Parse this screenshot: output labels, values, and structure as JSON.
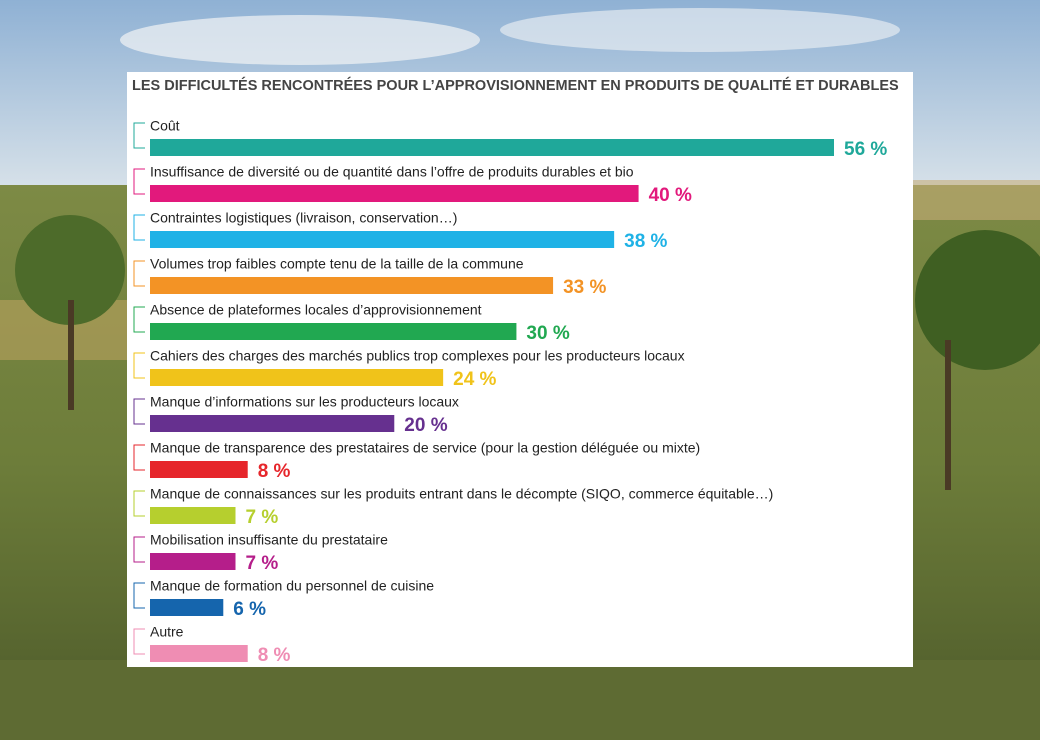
{
  "chart_data": {
    "type": "bar",
    "orientation": "horizontal",
    "title": "LES DIFFICULTÉS RENCONTRÉES POUR L’APPROVISIONNEMENT EN PRODUITS DE QUALITÉ ET DURABLES",
    "categories": [
      "Coût",
      "Insuffisance de diversité ou de quantité dans l’offre de produits durables et bio",
      "Contraintes logistiques (livraison, conservation…)",
      "Volumes trop faibles compte tenu de la taille de la commune",
      "Absence de plateformes locales d’approvisionnement",
      "Cahiers des charges des marchés publics trop complexes pour les producteurs locaux",
      "Manque d’informations sur les producteurs locaux",
      "Manque de transparence des prestataires de service (pour la gestion déléguée ou mixte)",
      "Manque de connaissances sur les produits entrant dans le décompte (SIQO, commerce équitable…)",
      "Mobilisation insuffisante du prestataire",
      "Manque de formation du personnel de cuisine",
      "Autre"
    ],
    "values": [
      56,
      40,
      38,
      33,
      30,
      24,
      20,
      8,
      7,
      7,
      6,
      8
    ],
    "value_labels": [
      "56 %",
      "40 %",
      "38 %",
      "33 %",
      "30 %",
      "24 %",
      "20 %",
      "8 %",
      "7 %",
      "7 %",
      "6 %",
      "8 %"
    ],
    "colors": [
      "#1fa89a",
      "#e2197c",
      "#1fb2e6",
      "#f39325",
      "#21a851",
      "#f0c31a",
      "#66308f",
      "#e6262b",
      "#b6cf2e",
      "#b51e8a",
      "#1565ad",
      "#ef8db3"
    ]
  }
}
